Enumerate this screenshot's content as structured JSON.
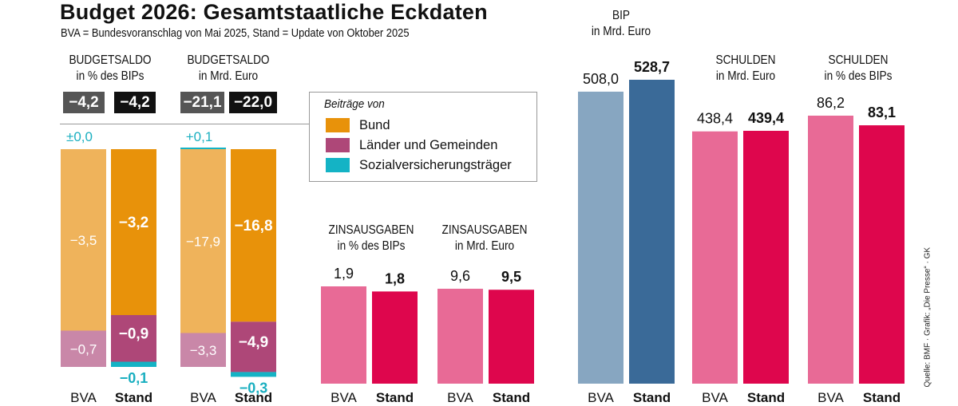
{
  "title": "Budget 2026: Gesamtstaatliche Eckdaten",
  "subtitle": "BVA = Bundesvoranschlag von Mai 2025, Stand = Update von Oktober 2025",
  "source": "Quelle: BMF · Grafik: „Die Presse“ · GK",
  "colors": {
    "bund_bva": "#EFB35B",
    "bund_stand": "#E8920A",
    "laender_bva": "#C987A8",
    "laender_stand": "#AE4778",
    "sv": "#14B3C5",
    "sv_text": "#1AAFC0",
    "bip_bva": "#87A6C1",
    "bip_stand": "#3A6A98",
    "red_bva": "#E86A96",
    "red_stand": "#DE064D",
    "box_bva": "#555555",
    "box_stand": "#111111"
  },
  "legend": {
    "title": "Beiträge von",
    "items": [
      {
        "label": "Bund",
        "key": "bund"
      },
      {
        "label": "Länder und Gemeinden",
        "key": "laender"
      },
      {
        "label": "Sozialversicherungsträger",
        "key": "sv"
      }
    ]
  },
  "chart_data": [
    {
      "type": "bar",
      "stacked": true,
      "title": "BUDGETSALDO",
      "subtitle": "in % des BIPs",
      "categories": [
        "BVA",
        "Stand"
      ],
      "totals": [
        "−4,2",
        "−4,2"
      ],
      "series": [
        {
          "name": "Bund",
          "values": [
            -3.5,
            -3.2
          ],
          "labels": [
            "−3,5",
            "−3,2"
          ]
        },
        {
          "name": "Länder und Gemeinden",
          "values": [
            -0.7,
            -0.9
          ],
          "labels": [
            "−0,7",
            "−0,9"
          ]
        },
        {
          "name": "Sozialversicherungsträger",
          "values": [
            0.0,
            -0.1
          ],
          "labels": [
            "±0,0",
            "−0,1"
          ]
        }
      ]
    },
    {
      "type": "bar",
      "stacked": true,
      "title": "BUDGETSALDO",
      "subtitle": "in Mrd. Euro",
      "categories": [
        "BVA",
        "Stand"
      ],
      "totals": [
        "−21,1",
        "−22,0"
      ],
      "series": [
        {
          "name": "Bund",
          "values": [
            -17.9,
            -16.8
          ],
          "labels": [
            "−17,9",
            "−16,8"
          ]
        },
        {
          "name": "Länder und Gemeinden",
          "values": [
            -3.3,
            -4.9
          ],
          "labels": [
            "−3,3",
            "−4,9"
          ]
        },
        {
          "name": "Sozialversicherungsträger",
          "values": [
            0.1,
            -0.3
          ],
          "labels": [
            "+0,1",
            "−0,3"
          ]
        }
      ]
    },
    {
      "type": "bar",
      "title": "ZINSAUSGABEN",
      "subtitle": "in % des BIPs",
      "categories": [
        "BVA",
        "Stand"
      ],
      "values": [
        1.9,
        1.8
      ],
      "labels": [
        "1,9",
        "1,8"
      ],
      "palette": "red"
    },
    {
      "type": "bar",
      "title": "ZINSAUSGABEN",
      "subtitle": "in Mrd. Euro",
      "categories": [
        "BVA",
        "Stand"
      ],
      "values": [
        9.6,
        9.5
      ],
      "labels": [
        "9,6",
        "9,5"
      ],
      "palette": "red"
    },
    {
      "type": "bar",
      "title": "BIP",
      "subtitle": "in Mrd. Euro",
      "categories": [
        "BVA",
        "Stand"
      ],
      "values": [
        508.0,
        528.7
      ],
      "labels": [
        "508,0",
        "528,7"
      ],
      "palette": "blue"
    },
    {
      "type": "bar",
      "title": "SCHULDEN",
      "subtitle": "in Mrd. Euro",
      "categories": [
        "BVA",
        "Stand"
      ],
      "values": [
        438.4,
        439.4
      ],
      "labels": [
        "438,4",
        "439,4"
      ],
      "palette": "red"
    },
    {
      "type": "bar",
      "title": "SCHULDEN",
      "subtitle": "in % des BIPs",
      "categories": [
        "BVA",
        "Stand"
      ],
      "values": [
        86.2,
        83.1
      ],
      "labels": [
        "86,2",
        "83,1"
      ],
      "palette": "red"
    }
  ]
}
